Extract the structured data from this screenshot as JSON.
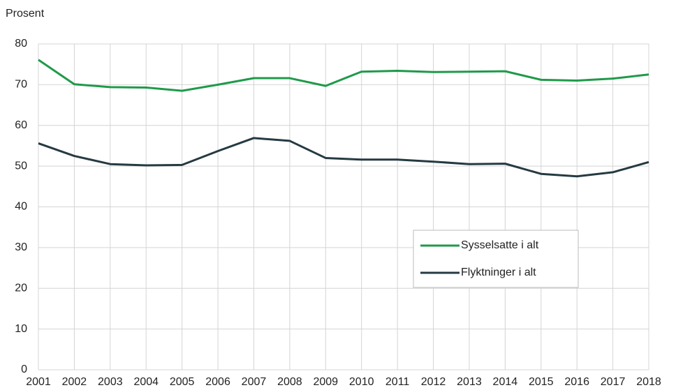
{
  "chart_data": {
    "type": "line",
    "y_label": "Prosent",
    "categories": [
      "2001",
      "2002",
      "2003",
      "2004",
      "2005",
      "2006",
      "2007",
      "2008",
      "2009",
      "2010",
      "2011",
      "2012",
      "2013",
      "2014",
      "2015",
      "2016",
      "2017",
      "2018"
    ],
    "series": [
      {
        "name": "Sysselsatte i alt",
        "color": "#1f9a4a",
        "values": [
          76.1,
          70.1,
          69.4,
          69.3,
          68.5,
          70.0,
          71.6,
          71.6,
          69.7,
          73.2,
          73.4,
          73.1,
          73.2,
          73.3,
          71.2,
          71.0,
          71.5,
          72.5
        ]
      },
      {
        "name": "Flyktninger i alt",
        "color": "#253a42",
        "values": [
          55.6,
          52.5,
          50.5,
          50.2,
          50.3,
          53.7,
          56.9,
          56.2,
          52.0,
          51.6,
          51.6,
          51.1,
          50.5,
          50.6,
          48.1,
          47.5,
          48.5,
          51.0
        ]
      }
    ],
    "ylim": [
      0,
      80
    ],
    "yticks": [
      0,
      10,
      20,
      30,
      40,
      50,
      60,
      70,
      80
    ],
    "grid": true,
    "legend": "lower right"
  }
}
